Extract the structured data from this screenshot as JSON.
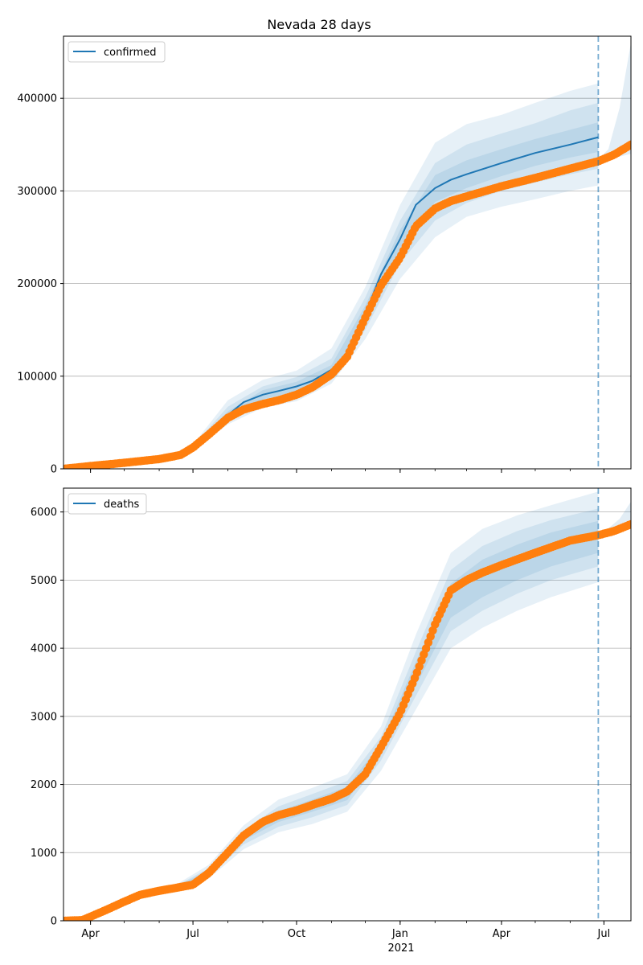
{
  "chart_data": [
    {
      "type": "line",
      "title": "Nevada 28 days",
      "legend": {
        "label": "confirmed",
        "placement": "top-left"
      },
      "x_range": [
        "2020-03-08",
        "2021-07-25"
      ],
      "forecast_start": "2021-06-26",
      "x_ticks": [
        {
          "date": "2020-04-01",
          "label": "Apr"
        },
        {
          "date": "2020-07-01",
          "label": "Jul"
        },
        {
          "date": "2020-10-01",
          "label": "Oct"
        },
        {
          "date": "2021-01-01",
          "label": "Jan"
        },
        {
          "date": "2021-04-01",
          "label": "Apr"
        },
        {
          "date": "2021-07-01",
          "label": "Jul"
        }
      ],
      "x_year_label": "",
      "y_ticks": [
        0,
        100000,
        200000,
        300000,
        400000
      ],
      "ylim": [
        0,
        467000
      ],
      "grid": "horizontal",
      "colors": {
        "model": "#1f77b4",
        "observed": "#ff7f0e",
        "band": "#1f77b4"
      },
      "model_line": {
        "x": [
          "2020-03-08",
          "2020-04-01",
          "2020-05-01",
          "2020-06-01",
          "2020-06-20",
          "2020-07-01",
          "2020-07-15",
          "2020-08-01",
          "2020-08-15",
          "2020-09-01",
          "2020-09-15",
          "2020-10-01",
          "2020-10-15",
          "2020-11-01",
          "2020-11-15",
          "2020-12-01",
          "2020-12-15",
          "2021-01-01",
          "2021-01-15",
          "2021-02-01",
          "2021-02-15",
          "2021-03-01",
          "2021-04-01",
          "2021-05-01",
          "2021-06-01",
          "2021-06-26"
        ],
        "y": [
          0,
          3000,
          6500,
          10500,
          15000,
          23000,
          37000,
          58000,
          72000,
          80000,
          84000,
          89000,
          95000,
          107000,
          124000,
          167000,
          210000,
          248000,
          285000,
          303000,
          312000,
          318000,
          330000,
          341000,
          350000,
          358000
        ]
      },
      "observed": {
        "x": [
          "2020-03-08",
          "2020-04-01",
          "2020-05-01",
          "2020-06-01",
          "2020-06-20",
          "2020-07-01",
          "2020-07-15",
          "2020-08-01",
          "2020-08-15",
          "2020-09-01",
          "2020-09-15",
          "2020-10-01",
          "2020-10-15",
          "2020-11-01",
          "2020-11-15",
          "2020-12-01",
          "2020-12-15",
          "2021-01-01",
          "2021-01-15",
          "2021-02-01",
          "2021-02-15",
          "2021-03-01",
          "2021-04-01",
          "2021-05-01",
          "2021-06-01",
          "2021-06-26",
          "2021-07-10",
          "2021-07-25"
        ],
        "y": [
          0,
          3000,
          6500,
          10500,
          15000,
          23000,
          37000,
          55000,
          64000,
          70000,
          74000,
          80000,
          88000,
          102000,
          121000,
          163000,
          198000,
          228000,
          262000,
          281000,
          289000,
          294000,
          305000,
          314000,
          324000,
          332000,
          339000,
          350000
        ]
      },
      "bands": [
        {
          "x": [
            "2020-07-01",
            "2020-08-01",
            "2020-09-01",
            "2020-10-01",
            "2020-11-01",
            "2020-12-01",
            "2021-01-01",
            "2021-02-01",
            "2021-03-01",
            "2021-04-01",
            "2021-05-01",
            "2021-06-01",
            "2021-06-26"
          ],
          "low": [
            21000,
            48000,
            66000,
            73000,
            92000,
            140000,
            205000,
            250000,
            272000,
            283000,
            291000,
            300000,
            306000
          ],
          "high": [
            26000,
            74000,
            96000,
            106000,
            130000,
            196000,
            285000,
            352000,
            372000,
            382000,
            395000,
            408000,
            416000
          ]
        },
        {
          "x": [
            "2020-07-01",
            "2020-08-01",
            "2020-09-01",
            "2020-10-01",
            "2020-11-01",
            "2020-12-01",
            "2021-01-01",
            "2021-02-01",
            "2021-03-01",
            "2021-04-01",
            "2021-05-01",
            "2021-06-01",
            "2021-06-26"
          ],
          "low": [
            22000,
            51000,
            71000,
            79000,
            98000,
            150000,
            222000,
            268000,
            287000,
            300000,
            309000,
            318000,
            324000
          ],
          "high": [
            25000,
            67000,
            89000,
            99000,
            119000,
            185000,
            268000,
            330000,
            350000,
            362000,
            373000,
            387000,
            395000
          ]
        },
        {
          "x": [
            "2020-07-01",
            "2020-08-01",
            "2020-09-01",
            "2020-10-01",
            "2020-11-01",
            "2020-12-01",
            "2021-01-01",
            "2021-02-01",
            "2021-03-01",
            "2021-04-01",
            "2021-05-01",
            "2021-06-01",
            "2021-06-26"
          ],
          "low": [
            22500,
            54000,
            75000,
            84000,
            102000,
            158000,
            235000,
            288000,
            303000,
            316000,
            327000,
            336000,
            342000
          ],
          "high": [
            24000,
            62000,
            85000,
            94000,
            112000,
            176000,
            258000,
            317000,
            333000,
            345000,
            356000,
            366000,
            374000
          ]
        }
      ],
      "post_band": {
        "x": [
          "2021-06-26",
          "2021-07-05",
          "2021-07-15",
          "2021-07-25"
        ],
        "low": [
          330000,
          334000,
          337000,
          340000
        ],
        "high": [
          334000,
          345000,
          390000,
          460000
        ]
      }
    },
    {
      "type": "line",
      "title": "",
      "legend": {
        "label": "deaths",
        "placement": "top-left"
      },
      "x_range": [
        "2020-03-08",
        "2021-07-25"
      ],
      "forecast_start": "2021-06-26",
      "x_ticks": [
        {
          "date": "2020-04-01",
          "label": "Apr"
        },
        {
          "date": "2020-07-01",
          "label": "Jul"
        },
        {
          "date": "2020-10-01",
          "label": "Oct"
        },
        {
          "date": "2021-01-01",
          "label": "Jan"
        },
        {
          "date": "2021-04-01",
          "label": "Apr"
        },
        {
          "date": "2021-07-01",
          "label": "Jul"
        }
      ],
      "x_year_label": "2021",
      "y_ticks": [
        0,
        1000,
        2000,
        3000,
        4000,
        5000,
        6000
      ],
      "ylim": [
        0,
        6350
      ],
      "grid": "horizontal",
      "colors": {
        "model": "#1f77b4",
        "observed": "#ff7f0e",
        "band": "#1f77b4"
      },
      "observed": {
        "x": [
          "2020-03-08",
          "2020-03-25",
          "2020-04-01",
          "2020-04-15",
          "2020-05-01",
          "2020-05-15",
          "2020-06-01",
          "2020-06-15",
          "2020-07-01",
          "2020-07-15",
          "2020-08-01",
          "2020-08-15",
          "2020-09-01",
          "2020-09-15",
          "2020-10-01",
          "2020-10-15",
          "2020-11-01",
          "2020-11-15",
          "2020-12-01",
          "2020-12-15",
          "2021-01-01",
          "2021-01-15",
          "2021-02-01",
          "2021-02-15",
          "2021-03-01",
          "2021-03-15",
          "2021-04-01",
          "2021-05-01",
          "2021-06-01",
          "2021-06-26",
          "2021-07-10",
          "2021-07-25"
        ],
        "y": [
          0,
          10,
          60,
          160,
          280,
          380,
          440,
          480,
          530,
          700,
          1000,
          1250,
          1450,
          1550,
          1620,
          1700,
          1790,
          1900,
          2150,
          2550,
          3050,
          3600,
          4350,
          4850,
          5000,
          5110,
          5220,
          5400,
          5580,
          5660,
          5720,
          5820
        ]
      },
      "bands": [
        {
          "x": [
            "2020-04-15",
            "2020-05-15",
            "2020-06-15",
            "2020-07-15",
            "2020-08-15",
            "2020-09-15",
            "2020-10-15",
            "2020-11-15",
            "2020-12-15",
            "2021-01-15",
            "2021-02-15",
            "2021-03-15",
            "2021-04-15",
            "2021-05-15",
            "2021-06-26"
          ],
          "low": [
            150,
            360,
            450,
            620,
            1050,
            1300,
            1420,
            1600,
            2200,
            3100,
            4000,
            4300,
            4550,
            4750,
            4970
          ],
          "high": [
            170,
            400,
            520,
            820,
            1400,
            1780,
            1950,
            2150,
            2850,
            4200,
            5400,
            5750,
            5950,
            6100,
            6300
          ]
        },
        {
          "x": [
            "2020-04-15",
            "2020-05-15",
            "2020-06-15",
            "2020-07-15",
            "2020-08-15",
            "2020-09-15",
            "2020-10-15",
            "2020-11-15",
            "2020-12-15",
            "2021-01-15",
            "2021-02-15",
            "2021-03-15",
            "2021-04-15",
            "2021-05-15",
            "2021-06-26"
          ],
          "low": [
            155,
            365,
            460,
            650,
            1120,
            1380,
            1520,
            1700,
            2350,
            3300,
            4250,
            4550,
            4800,
            5000,
            5200
          ],
          "high": [
            165,
            395,
            505,
            770,
            1330,
            1680,
            1860,
            2050,
            2700,
            3950,
            5150,
            5500,
            5720,
            5880,
            6050
          ]
        },
        {
          "x": [
            "2020-04-15",
            "2020-05-15",
            "2020-06-15",
            "2020-07-15",
            "2020-08-15",
            "2020-09-15",
            "2020-10-15",
            "2020-11-15",
            "2020-12-15",
            "2021-01-15",
            "2021-02-15",
            "2021-03-15",
            "2021-04-15",
            "2021-05-15",
            "2021-06-26"
          ],
          "low": [
            158,
            372,
            470,
            680,
            1180,
            1450,
            1600,
            1770,
            2450,
            3450,
            4450,
            4750,
            5000,
            5200,
            5400
          ],
          "high": [
            162,
            388,
            495,
            740,
            1280,
            1610,
            1780,
            1970,
            2600,
            3800,
            4950,
            5300,
            5520,
            5700,
            5870
          ]
        }
      ],
      "post_band": {
        "x": [
          "2021-06-26",
          "2021-07-05",
          "2021-07-15",
          "2021-07-25"
        ],
        "low": [
          5650,
          5690,
          5740,
          5800
        ],
        "high": [
          5690,
          5760,
          5900,
          6150
        ]
      }
    }
  ]
}
